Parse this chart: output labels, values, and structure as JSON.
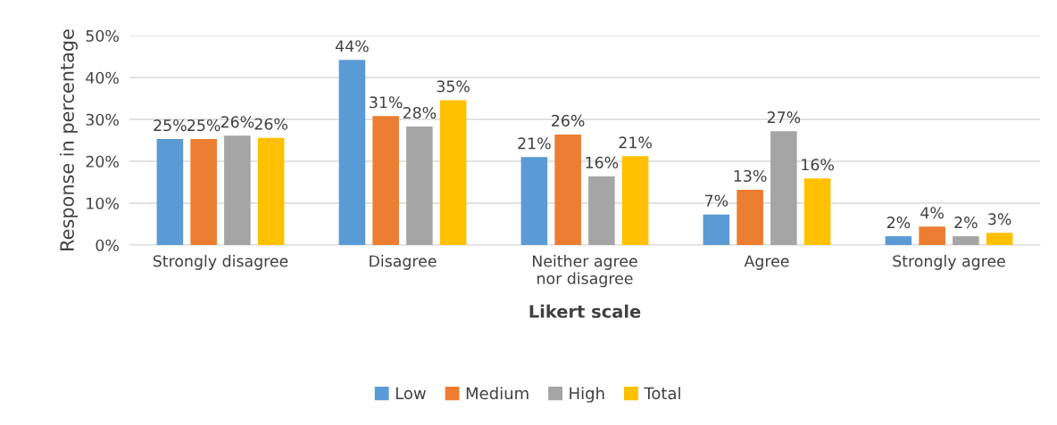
{
  "chart_data": {
    "type": "bar",
    "xlabel": "Likert scale",
    "ylabel": "Response in percentage",
    "categories": [
      "Strongly disagree",
      "Disagree",
      "Neither agree nor disagree",
      "Agree",
      "Strongly agree"
    ],
    "series": [
      {
        "name": "Low",
        "color": "#5b9bd5",
        "values": [
          25.3,
          44.2,
          21.0,
          7.3,
          2.1
        ],
        "value_labels": [
          "25%",
          "44%",
          "21%",
          "7%",
          "2%"
        ]
      },
      {
        "name": "Medium",
        "color": "#ed7d31",
        "values": [
          25.3,
          30.8,
          26.4,
          13.2,
          4.4
        ],
        "value_labels": [
          "25%",
          "31%",
          "26%",
          "13%",
          "4%"
        ]
      },
      {
        "name": "High",
        "color": "#a5a5a5",
        "values": [
          26.1,
          28.3,
          16.4,
          27.2,
          2.1
        ],
        "value_labels": [
          "26%",
          "28%",
          "16%",
          "27%",
          "2%"
        ]
      },
      {
        "name": "Total",
        "color": "#ffc000",
        "values": [
          25.6,
          34.6,
          21.2,
          15.9,
          2.9
        ],
        "value_labels": [
          "26%",
          "35%",
          "21%",
          "16%",
          "3%"
        ]
      }
    ],
    "ylim": [
      0,
      50
    ],
    "yticks": [
      {
        "value": 0,
        "label": "0%"
      },
      {
        "value": 10,
        "label": "10%"
      },
      {
        "value": 20,
        "label": "20%"
      },
      {
        "value": 30,
        "label": "30%"
      },
      {
        "value": 40,
        "label": "40%"
      },
      {
        "value": 50,
        "label": "50%"
      }
    ],
    "grid": "y",
    "legend": "bottom"
  }
}
